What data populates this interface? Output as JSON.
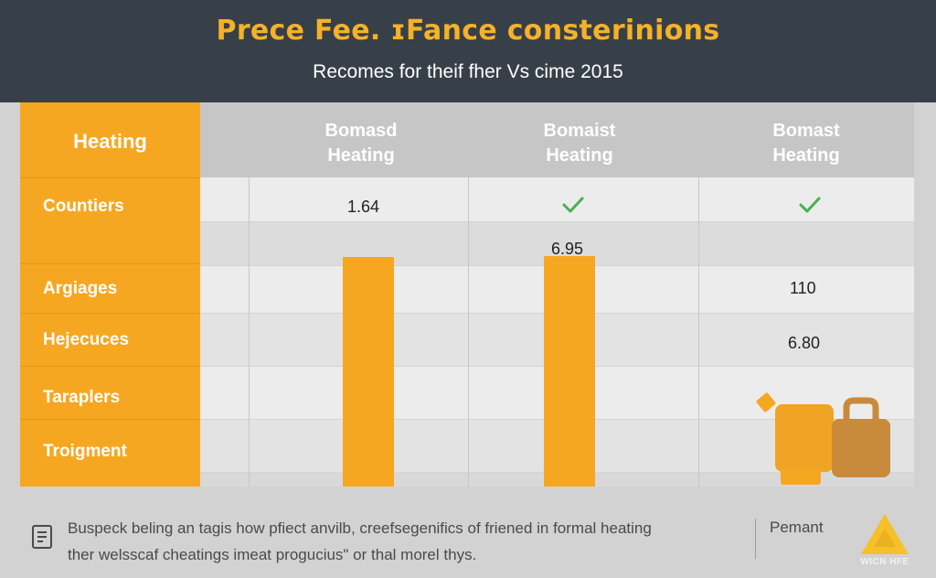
{
  "title": "Prece Fee. ɪFance consterinions",
  "subtitle": "Recomes for theif fher Vs cime 2015",
  "table": {
    "corner_header": "Heating",
    "columns": [
      {
        "line1": "Bomasd",
        "line2": "Heating"
      },
      {
        "line1": "Bomaist",
        "line2": "Heating"
      },
      {
        "line1": "Bomast",
        "line2": "Heating"
      }
    ],
    "rows": [
      "Countiers",
      "Argiages",
      "Hejecuces",
      "Taraplers",
      "Troigment"
    ]
  },
  "cell_values": {
    "c1_countiers": "1.64",
    "c2_between": "6.95",
    "c3_argiages": "110",
    "c3_hejecuces": "6.80"
  },
  "checkmarks": {
    "column2": "check-icon",
    "column3": "check-icon"
  },
  "chart_data": {
    "type": "bar",
    "categories": [
      "Bomasd Heating",
      "Bomaist Heating",
      "Bomast Heating"
    ],
    "values": [
      1.64,
      6.95,
      6.8
    ],
    "title": "Prece Fee. ɪFance consterinions",
    "subtitle": "Recomes for theif fher Vs cime 2015"
  },
  "footer": {
    "text_line1": "Buspeck beling an tagis how pfiect anvilb, creefsegenifics of friened in formal heating",
    "text_line2": "ther welsscaf cheatings imeat progucius\" or thal morel thys.",
    "right_label": "Pemant",
    "logo_text": "WICN HFE"
  },
  "colors": {
    "header_bg": "#374049",
    "accent": "#f6a722",
    "title": "#f5b128",
    "check": "#4caf50",
    "table_bg": "#e9e9e9",
    "page_bg": "#d2d2d2"
  }
}
